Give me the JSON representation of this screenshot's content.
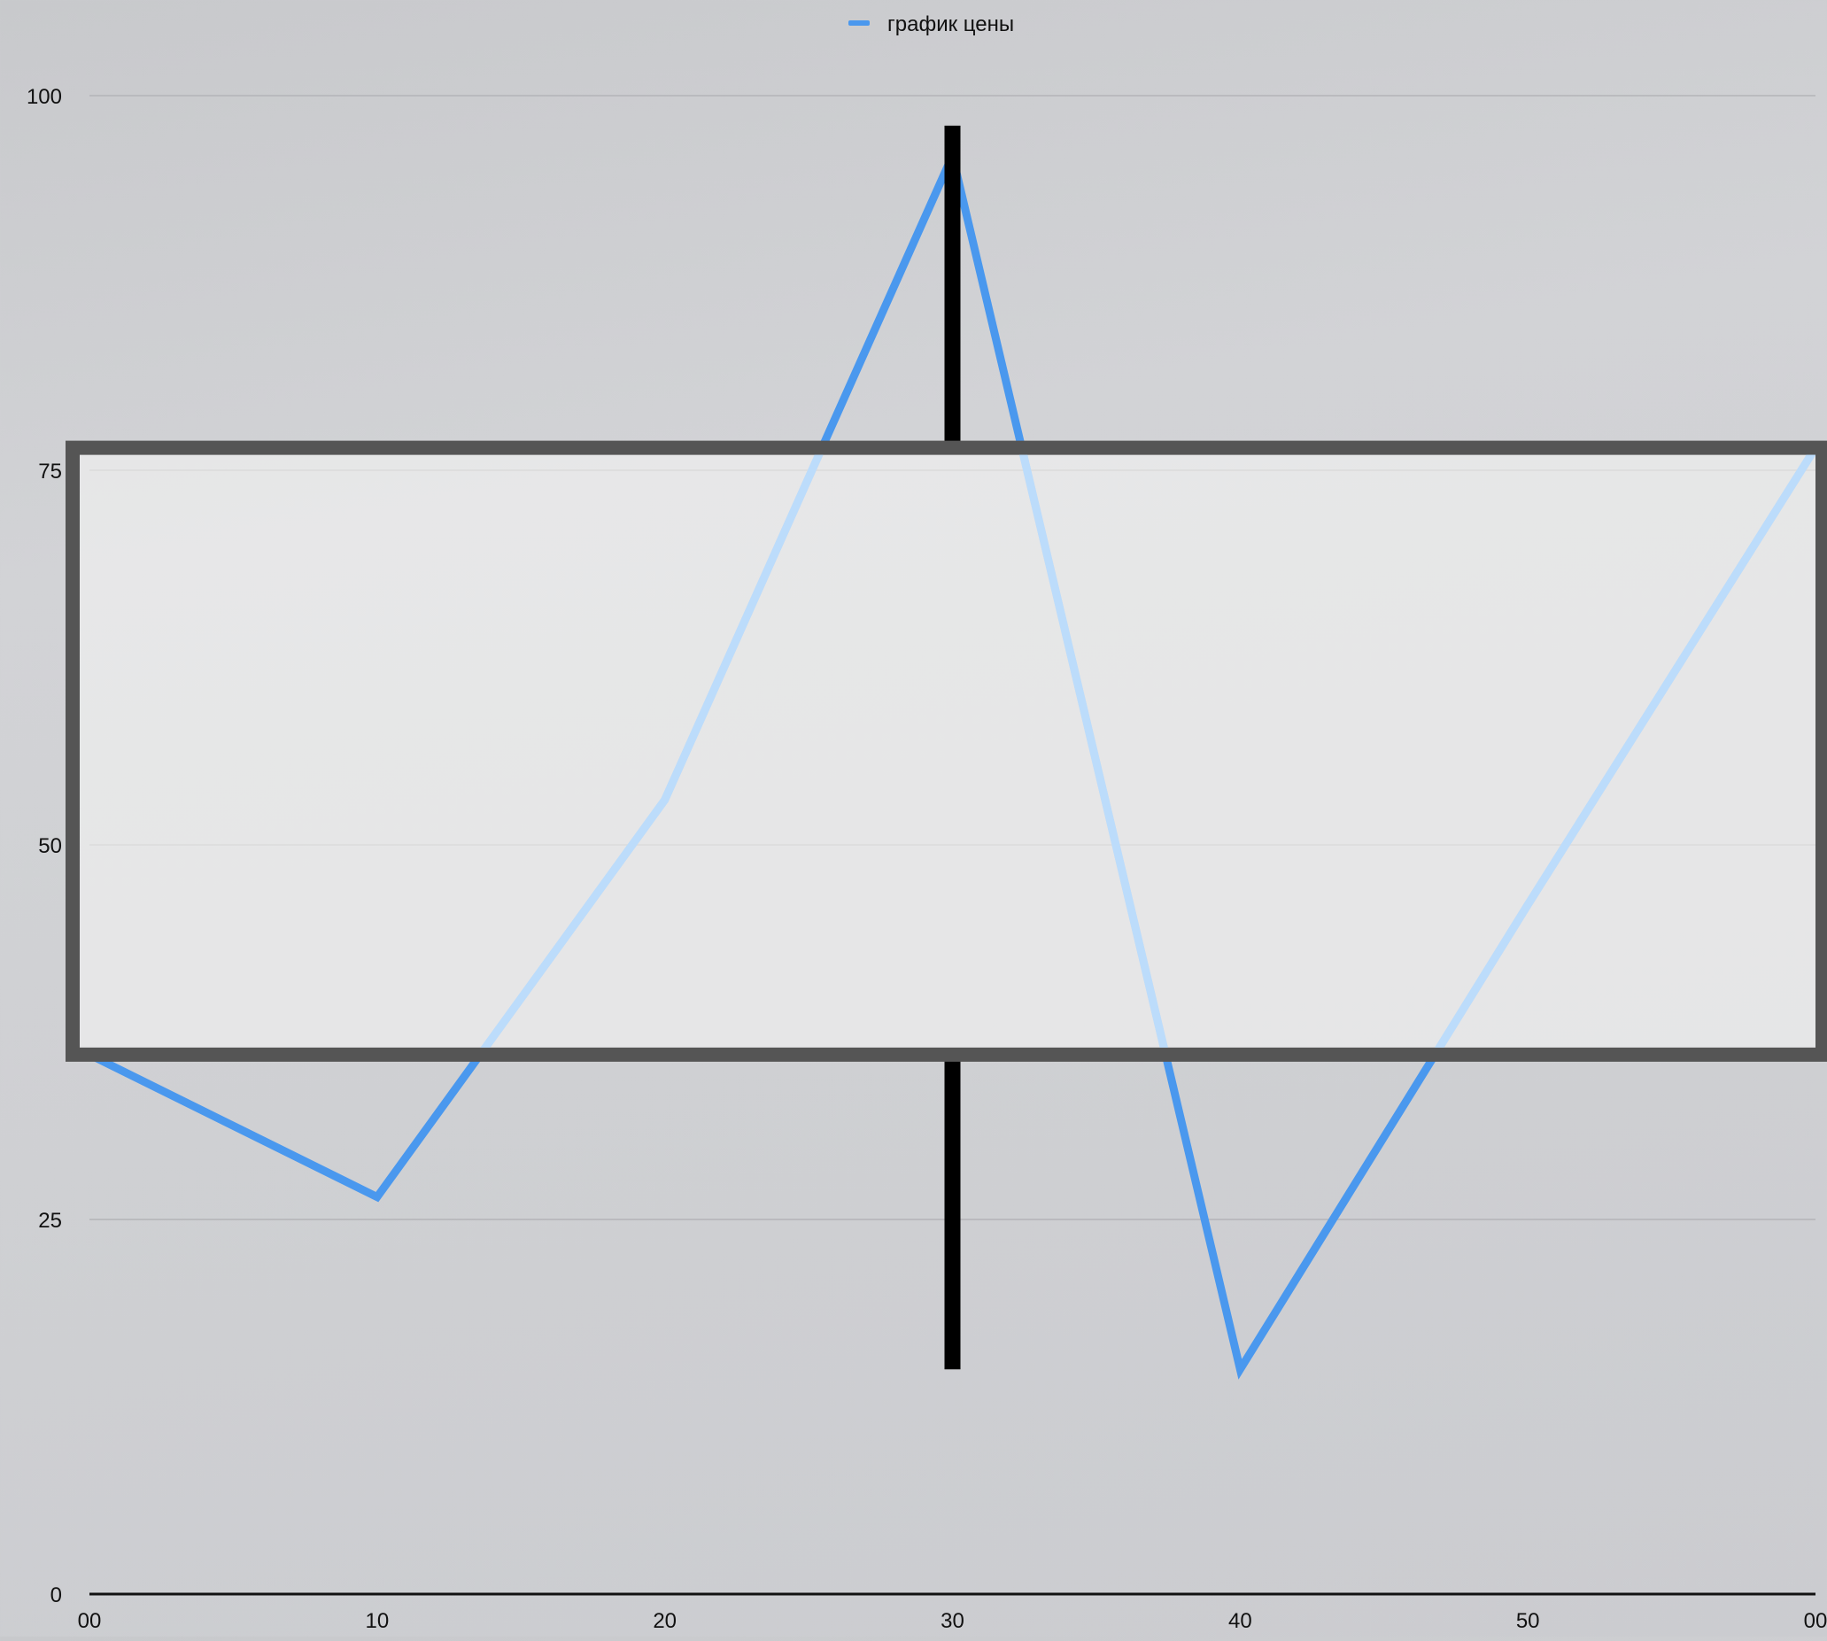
{
  "chart_data": {
    "type": "line",
    "title": "",
    "xlabel": "",
    "ylabel": "",
    "legend": {
      "position": "top-center",
      "entries": [
        "график цены"
      ]
    },
    "x_tick_labels": [
      "00",
      "10",
      "20",
      "30",
      "40",
      "50",
      "00"
    ],
    "y_ticks": [
      0,
      25,
      50,
      75,
      100
    ],
    "ylim": [
      0,
      100
    ],
    "grid": {
      "horizontal": true,
      "vertical": false
    },
    "series": [
      {
        "name": "график цены",
        "color": "#4a98ee",
        "points": [
          {
            "x": "00",
            "y": 36
          },
          {
            "x": "10",
            "y": 26.5
          },
          {
            "x": "20",
            "y": 53
          },
          {
            "x": "30",
            "y": 96
          },
          {
            "x": "40",
            "y": 15
          },
          {
            "x": "50",
            "y": 46
          },
          {
            "x": "00",
            "y": 76.5
          }
        ]
      }
    ],
    "candlestick": {
      "x": "30",
      "high": 98,
      "open": 76.5,
      "close": 36,
      "low": 15,
      "body_color": "#eeeeee",
      "border_color": "#555555",
      "wick_color": "#000000"
    }
  }
}
